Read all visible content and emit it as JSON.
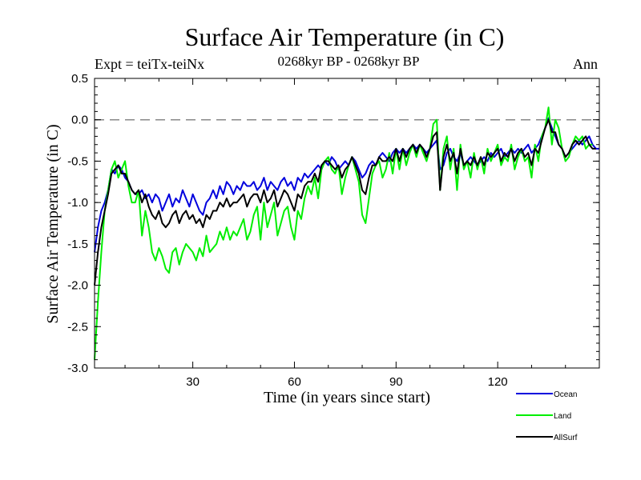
{
  "chart_data": {
    "type": "line",
    "title": "Surface Air Temperature (in C)",
    "subtitle": "0268kyr BP - 0268kyr BP",
    "experiment_label": "Expt = teiTx-teiNx",
    "season_label": "Ann",
    "xlabel": "Time (in years since start)",
    "ylabel": "Surface Air Temperature (in C)",
    "xlim": [
      1,
      150
    ],
    "ylim": [
      -3.0,
      0.5
    ],
    "x_ticks": [
      30,
      60,
      90,
      120
    ],
    "x_tick_labels": [
      "30",
      "60",
      "90",
      "120"
    ],
    "y_ticks": [
      -3.0,
      -2.5,
      -2.0,
      -1.5,
      -1.0,
      -0.5,
      0.0,
      0.5
    ],
    "y_tick_labels": [
      "-3.0",
      "-2.5",
      "-2.0",
      "-1.5",
      "-1.0",
      "-0.5",
      "0.0",
      "0.5"
    ],
    "reference_line": 0.0,
    "legend_position": "bottom-right, outside plot",
    "x_start": 1,
    "x_step": 1,
    "series": [
      {
        "name": "Ocean",
        "color": "#0000dd",
        "values": [
          -1.6,
          -1.3,
          -1.1,
          -1.0,
          -0.85,
          -0.6,
          -0.65,
          -0.55,
          -0.6,
          -0.7,
          -0.75,
          -0.85,
          -0.9,
          -0.9,
          -0.85,
          -0.95,
          -0.9,
          -1.0,
          -0.9,
          -0.95,
          -1.1,
          -1.0,
          -0.9,
          -1.05,
          -0.95,
          -1.0,
          -0.85,
          -0.95,
          -1.05,
          -0.9,
          -1.0,
          -1.1,
          -1.15,
          -1.0,
          -0.95,
          -0.85,
          -0.95,
          -0.8,
          -0.9,
          -0.75,
          -0.8,
          -0.9,
          -0.8,
          -0.85,
          -0.75,
          -0.8,
          -0.8,
          -0.75,
          -0.85,
          -0.8,
          -0.7,
          -0.85,
          -0.75,
          -0.8,
          -0.85,
          -0.75,
          -0.7,
          -0.8,
          -0.75,
          -0.85,
          -0.7,
          -0.75,
          -0.65,
          -0.7,
          -0.65,
          -0.6,
          -0.55,
          -0.6,
          -0.5,
          -0.55,
          -0.45,
          -0.5,
          -0.6,
          -0.55,
          -0.5,
          -0.55,
          -0.45,
          -0.5,
          -0.6,
          -0.7,
          -0.65,
          -0.55,
          -0.5,
          -0.55,
          -0.45,
          -0.4,
          -0.45,
          -0.5,
          -0.4,
          -0.35,
          -0.4,
          -0.35,
          -0.4,
          -0.35,
          -0.3,
          -0.35,
          -0.3,
          -0.35,
          -0.4,
          -0.35,
          -0.3,
          -0.25,
          -0.6,
          -0.55,
          -0.4,
          -0.35,
          -0.45,
          -0.5,
          -0.4,
          -0.55,
          -0.5,
          -0.45,
          -0.5,
          -0.55,
          -0.5,
          -0.45,
          -0.5,
          -0.4,
          -0.45,
          -0.4,
          -0.35,
          -0.45,
          -0.4,
          -0.35,
          -0.4,
          -0.35,
          -0.4,
          -0.35,
          -0.3,
          -0.4,
          -0.35,
          -0.3,
          -0.2,
          -0.1,
          0.02,
          -0.1,
          -0.2,
          -0.3,
          -0.35,
          -0.45,
          -0.4,
          -0.35,
          -0.3,
          -0.25,
          -0.3,
          -0.25,
          -0.2,
          -0.3,
          -0.35,
          -0.35
        ]
      },
      {
        "name": "Land",
        "color": "#00ee00",
        "values": [
          -2.9,
          -2.2,
          -1.6,
          -1.1,
          -0.85,
          -0.6,
          -0.5,
          -0.7,
          -0.6,
          -0.5,
          -0.8,
          -1.0,
          -1.0,
          -0.85,
          -1.4,
          -1.1,
          -1.3,
          -1.6,
          -1.7,
          -1.55,
          -1.65,
          -1.8,
          -1.85,
          -1.6,
          -1.55,
          -1.75,
          -1.6,
          -1.5,
          -1.55,
          -1.6,
          -1.7,
          -1.55,
          -1.65,
          -1.4,
          -1.6,
          -1.55,
          -1.5,
          -1.35,
          -1.45,
          -1.3,
          -1.45,
          -1.35,
          -1.4,
          -1.3,
          -1.2,
          -1.45,
          -1.35,
          -1.15,
          -1.05,
          -1.45,
          -1.0,
          -1.3,
          -1.15,
          -1.0,
          -1.4,
          -1.25,
          -1.1,
          -1.05,
          -1.3,
          -1.45,
          -1.1,
          -1.2,
          -0.95,
          -0.8,
          -0.9,
          -0.7,
          -0.95,
          -0.6,
          -0.5,
          -0.45,
          -0.6,
          -0.65,
          -0.55,
          -0.9,
          -0.7,
          -0.55,
          -0.45,
          -0.6,
          -0.75,
          -1.15,
          -1.25,
          -0.95,
          -0.65,
          -0.55,
          -0.5,
          -0.7,
          -0.6,
          -0.4,
          -0.65,
          -0.35,
          -0.6,
          -0.35,
          -0.55,
          -0.4,
          -0.3,
          -0.45,
          -0.3,
          -0.4,
          -0.5,
          -0.35,
          -0.05,
          0.0,
          -0.85,
          -0.35,
          -0.2,
          -0.6,
          -0.35,
          -0.85,
          -0.3,
          -0.6,
          -0.5,
          -0.7,
          -0.4,
          -0.6,
          -0.45,
          -0.65,
          -0.35,
          -0.5,
          -0.4,
          -0.3,
          -0.55,
          -0.45,
          -0.5,
          -0.3,
          -0.6,
          -0.45,
          -0.35,
          -0.5,
          -0.45,
          -0.7,
          -0.3,
          -0.5,
          -0.2,
          -0.1,
          0.15,
          -0.3,
          0.0,
          -0.1,
          -0.35,
          -0.5,
          -0.45,
          -0.3,
          -0.2,
          -0.25,
          -0.2,
          -0.35,
          -0.3,
          -0.3
        ]
      },
      {
        "name": "AllSurf",
        "color": "#000000",
        "values": [
          -2.0,
          -1.6,
          -1.3,
          -1.1,
          -0.9,
          -0.65,
          -0.6,
          -0.55,
          -0.65,
          -0.65,
          -0.75,
          -0.85,
          -0.9,
          -0.85,
          -1.0,
          -0.9,
          -1.05,
          -1.15,
          -1.2,
          -1.1,
          -1.25,
          -1.3,
          -1.25,
          -1.15,
          -1.1,
          -1.25,
          -1.15,
          -1.1,
          -1.2,
          -1.15,
          -1.25,
          -1.2,
          -1.3,
          -1.15,
          -1.2,
          -1.1,
          -1.1,
          -1.0,
          -1.05,
          -0.95,
          -1.05,
          -1.0,
          -1.0,
          -0.95,
          -0.9,
          -1.05,
          -0.95,
          -0.9,
          -0.9,
          -1.0,
          -0.85,
          -1.0,
          -0.95,
          -0.85,
          -1.05,
          -0.95,
          -0.85,
          -0.9,
          -1.0,
          -1.1,
          -0.9,
          -0.95,
          -0.8,
          -0.75,
          -0.75,
          -0.65,
          -0.75,
          -0.55,
          -0.5,
          -0.5,
          -0.55,
          -0.6,
          -0.55,
          -0.7,
          -0.6,
          -0.55,
          -0.45,
          -0.55,
          -0.65,
          -0.85,
          -0.9,
          -0.7,
          -0.55,
          -0.55,
          -0.45,
          -0.5,
          -0.5,
          -0.45,
          -0.5,
          -0.35,
          -0.5,
          -0.35,
          -0.45,
          -0.35,
          -0.3,
          -0.4,
          -0.3,
          -0.35,
          -0.45,
          -0.35,
          -0.2,
          -0.15,
          -0.85,
          -0.45,
          -0.3,
          -0.5,
          -0.4,
          -0.65,
          -0.35,
          -0.55,
          -0.5,
          -0.55,
          -0.45,
          -0.55,
          -0.45,
          -0.55,
          -0.4,
          -0.45,
          -0.4,
          -0.35,
          -0.5,
          -0.4,
          -0.45,
          -0.35,
          -0.5,
          -0.4,
          -0.35,
          -0.45,
          -0.4,
          -0.55,
          -0.35,
          -0.4,
          -0.25,
          -0.1,
          0.0,
          -0.15,
          -0.15,
          -0.3,
          -0.35,
          -0.45,
          -0.4,
          -0.3,
          -0.25,
          -0.3,
          -0.25,
          -0.2,
          -0.3,
          -0.35,
          -0.35
        ]
      }
    ]
  }
}
